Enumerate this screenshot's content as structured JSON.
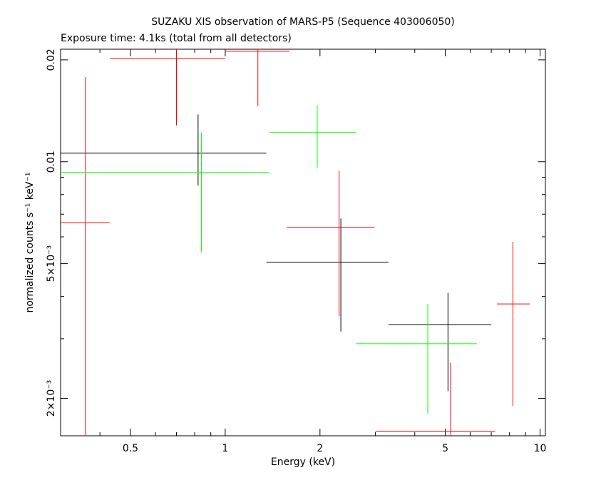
{
  "chart_data": {
    "type": "scatter",
    "title": "SUZAKU XIS observation of MARS-P5 (Sequence 403006050)",
    "subtitle": "Exposure time: 4.1ks (total from all detectors)",
    "xlabel": "Energy (keV)",
    "ylabel": "normalized counts s⁻¹ keV⁻¹",
    "x_scale": "log",
    "y_scale": "log",
    "xlim": [
      0.3,
      10.4
    ],
    "ylim": [
      0.00155,
      0.0215
    ],
    "x_ticks": [
      {
        "value": 0.5,
        "label": "0.5"
      },
      {
        "value": 1,
        "label": "1"
      },
      {
        "value": 2,
        "label": "2"
      },
      {
        "value": 5,
        "label": "5"
      },
      {
        "value": 10,
        "label": "10"
      }
    ],
    "y_ticks": [
      {
        "value": 0.002,
        "label": "2×10⁻³"
      },
      {
        "value": 0.005,
        "label": "5×10⁻³"
      },
      {
        "value": 0.01,
        "label": "0.01"
      },
      {
        "value": 0.02,
        "label": "0.02"
      }
    ],
    "grid": false,
    "series": [
      {
        "color": "#000000",
        "points": [
          {
            "x": 0.82,
            "xlo": 0.3,
            "xhi": 1.35,
            "y": 0.0106,
            "ylo": 0.0085,
            "yhi": 0.0138
          },
          {
            "x": 2.33,
            "xlo": 1.35,
            "xhi": 3.3,
            "y": 0.00505,
            "ylo": 0.00315,
            "yhi": 0.0068
          },
          {
            "x": 5.1,
            "xlo": 3.3,
            "xhi": 7.0,
            "y": 0.0033,
            "ylo": 0.0021,
            "yhi": 0.0041
          }
        ]
      },
      {
        "color": "#ff0000",
        "points": [
          {
            "x": 0.36,
            "xlo": 0.3,
            "xhi": 0.43,
            "y": 0.0066,
            "ylo": 0.00155,
            "yhi": 0.0178
          },
          {
            "x": 0.7,
            "xlo": 0.43,
            "xhi": 1.0,
            "y": 0.0202,
            "ylo": 0.0128,
            "yhi": 0.0225
          },
          {
            "x": 1.27,
            "xlo": 1.0,
            "xhi": 1.6,
            "y": 0.0212,
            "ylo": 0.0146,
            "yhi": 0.0225
          },
          {
            "x": 2.3,
            "xlo": 1.57,
            "xhi": 2.98,
            "y": 0.0064,
            "ylo": 0.0035,
            "yhi": 0.0094
          },
          {
            "x": 5.2,
            "xlo": 3.0,
            "xhi": 7.2,
            "y": 0.0016,
            "ylo": 0.00155,
            "yhi": 0.00255
          },
          {
            "x": 8.2,
            "xlo": 7.3,
            "xhi": 9.3,
            "y": 0.0038,
            "ylo": 0.0019,
            "yhi": 0.0058
          }
        ]
      },
      {
        "color": "#00ff00",
        "points": [
          {
            "x": 0.84,
            "xlo": 0.3,
            "xhi": 1.38,
            "y": 0.0093,
            "ylo": 0.0054,
            "yhi": 0.0122
          },
          {
            "x": 1.96,
            "xlo": 1.38,
            "xhi": 2.6,
            "y": 0.0122,
            "ylo": 0.0096,
            "yhi": 0.0147
          },
          {
            "x": 4.4,
            "xlo": 2.6,
            "xhi": 6.3,
            "y": 0.0029,
            "ylo": 0.0018,
            "yhi": 0.0038
          }
        ]
      }
    ]
  }
}
